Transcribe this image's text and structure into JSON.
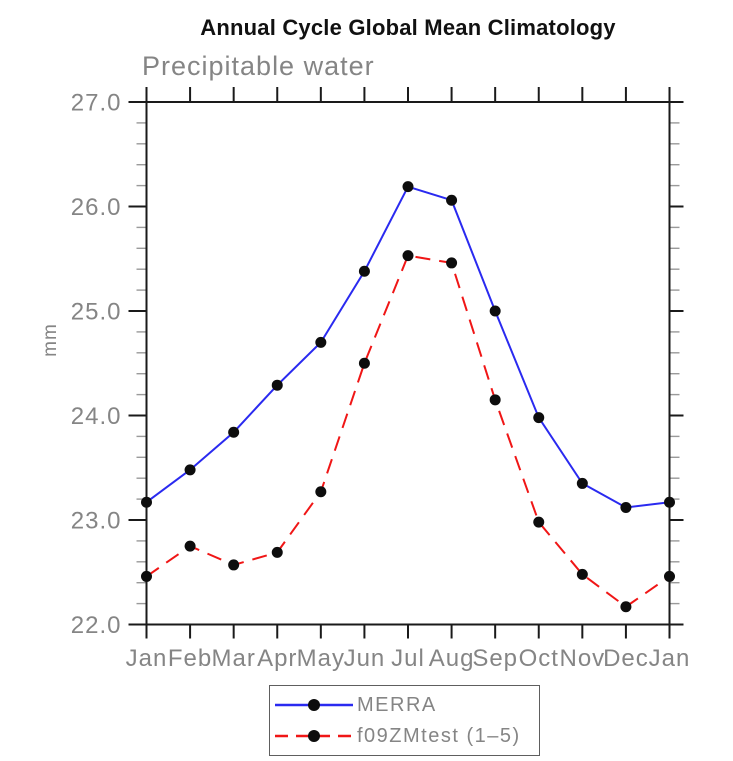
{
  "chart_data": {
    "type": "line",
    "title": "Annual Cycle Global Mean Climatology",
    "subtitle": "Precipitable water",
    "xlabel": "",
    "ylabel": "mm",
    "categories": [
      "Jan",
      "Feb",
      "Mar",
      "Apr",
      "May",
      "Jun",
      "Jul",
      "Aug",
      "Sep",
      "Oct",
      "Nov",
      "Dec",
      "Jan"
    ],
    "ylim": [
      22.0,
      27.0
    ],
    "ytick_values": [
      22.0,
      23.0,
      24.0,
      25.0,
      26.0,
      27.0
    ],
    "ytick_labels": [
      "22.0",
      "23.0",
      "24.0",
      "25.0",
      "26.0",
      "27.0"
    ],
    "ytick_minor_step": 0.2,
    "grid": false,
    "legend_position": "bottom-center",
    "colors": {
      "axis": "#1a1a1a",
      "minor_tick": "#9a9a9a",
      "marker": "#0d0d0d",
      "label_text": "#858585"
    },
    "series": [
      {
        "name": "MERRA",
        "color": "#2a2af0",
        "style": "solid",
        "marker": "circle",
        "values": [
          23.17,
          23.48,
          23.84,
          24.29,
          24.7,
          25.38,
          26.19,
          26.06,
          25.0,
          23.98,
          23.35,
          23.12,
          23.17
        ]
      },
      {
        "name": "f09ZMtest (1–5)",
        "color": "#f01616",
        "style": "dashed",
        "marker": "circle",
        "values": [
          22.46,
          22.75,
          22.57,
          22.69,
          23.27,
          24.5,
          25.53,
          25.46,
          24.15,
          22.98,
          22.48,
          22.17,
          22.46
        ]
      }
    ]
  }
}
